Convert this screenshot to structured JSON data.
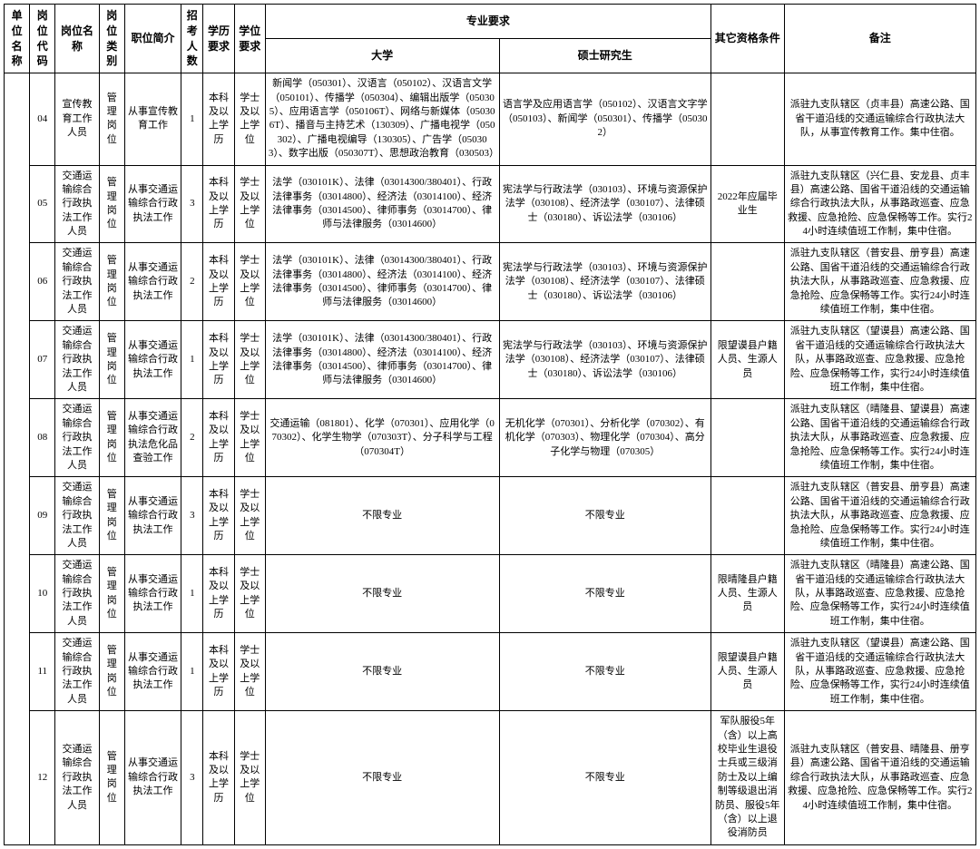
{
  "header": {
    "unit": "单位名称",
    "code": "岗位代码",
    "pname": "岗位名称",
    "ptype": "岗位类别",
    "desc": "职位简介",
    "count": "招考人数",
    "edu": "学历要求",
    "deg": "学位要求",
    "majGroup": "专业要求",
    "major1": "大学",
    "major2": "硕士研究生",
    "other": "其它资格条件",
    "remark": "备注"
  },
  "rows": [
    {
      "code": "04",
      "pname": "宣传教育工作人员",
      "ptype": "管理岗位",
      "desc": "从事宣传教育工作",
      "count": "1",
      "edu": "本科及以上学历",
      "deg": "学士及以上学位",
      "major1": "新闻学（050301）、汉语言（050102）、汉语言文学（050101）、传播学（050304）、编辑出版学（050305）、应用语言学（050106T）、网络与新媒体（050306T）、播音与主持艺术（130309）、广播电视学（050302）、广播电视编导（130305）、广告学（050303）、数字出版（050307T）、思想政治教育（030503）",
      "major2": "语言学及应用语言学（050102）、汉语言文字学（050103）、新闻学（050301）、传播学（050302）",
      "other": "",
      "remark": "派驻九支队辖区（贞丰县）高速公路、国省干道沿线的交通运输综合行政执法大队，从事宣传教育工作。集中住宿。"
    },
    {
      "code": "05",
      "pname": "交通运输综合行政执法工作人员",
      "ptype": "管理岗位",
      "desc": "从事交通运输综合行政执法工作",
      "count": "3",
      "edu": "本科及以上学历",
      "deg": "学士及以上学位",
      "major1": "法学（030101K）、法律（03014300/380401）、行政法律事务（03014800）、经济法（03014100）、经济法律事务（03014500）、律师事务（03014700）、律师与法律服务（03014600）",
      "major2": "宪法学与行政法学（030103）、环境与资源保护法学（030108）、经济法学（030107）、法律硕士（030180）、诉讼法学（030106）",
      "other": "2022年应届毕业生",
      "remark": "派驻九支队辖区（兴仁县、安龙县、贞丰县）高速公路、国省干道沿线的交通运输综合行政执法大队，从事路政巡查、应急救援、应急抢险、应急保畅等工作。实行24小时连续值班工作制，集中住宿。"
    },
    {
      "code": "06",
      "pname": "交通运输综合行政执法工作人员",
      "ptype": "管理岗位",
      "desc": "从事交通运输综合行政执法工作",
      "count": "2",
      "edu": "本科及以上学历",
      "deg": "学士及以上学位",
      "major1": "法学（030101K）、法律（03014300/380401）、行政法律事务（03014800）、经济法（03014100）、经济法律事务（03014500）、律师事务（03014700）、律师与法律服务（03014600）",
      "major2": "宪法学与行政法学（030103）、环境与资源保护法学（030108）、经济法学（030107）、法律硕士（030180）、诉讼法学（030106）",
      "other": "",
      "remark": "派驻九支队辖区（普安县、册亨县）高速公路、国省干道沿线的交通运输综合行政执法大队，从事路政巡查、应急救援、应急抢险、应急保畅等工作。实行24小时连续值班工作制，集中住宿。"
    },
    {
      "code": "07",
      "pname": "交通运输综合行政执法工作人员",
      "ptype": "管理岗位",
      "desc": "从事交通运输综合行政执法工作",
      "count": "1",
      "edu": "本科及以上学历",
      "deg": "学士及以上学位",
      "major1": "法学（030101K）、法律（03014300/380401）、行政法律事务（03014800）、经济法（03014100）、经济法律事务（03014500）、律师事务（03014700）、律师与法律服务（03014600）",
      "major2": "宪法学与行政法学（030103）、环境与资源保护法学（030108）、经济法学（030107）、法律硕士（030180）、诉讼法学（030106）",
      "other": "限望谟县户籍人员、生源人员",
      "remark": "派驻九支队辖区（望谟县）高速公路、国省干道沿线的交通运输综合行政执法大队，从事路政巡查、应急救援、应急抢险、应急保畅等工作，实行24小时连续值班工作制，集中住宿。"
    },
    {
      "code": "08",
      "pname": "交通运输综合行政执法工作人员",
      "ptype": "管理岗位",
      "desc": "从事交通运输综合行政执法危化品查验工作",
      "count": "2",
      "edu": "本科及以上学历",
      "deg": "学士及以上学位",
      "major1": "交通运输（081801）、化学（070301）、应用化学（070302）、化学生物学（070303T）、分子科学与工程（070304T）",
      "major2": "无机化学（070301）、分析化学（070302）、有机化学（070303）、物理化学（070304）、高分子化学与物理（070305）",
      "other": "",
      "remark": "派驻九支队辖区（晴隆县、望谟县）高速公路、国省干道沿线的交通运输综合行政执法大队，从事路政巡查、应急救援、应急抢险、应急保畅等工作。实行24小时连续值班工作制，集中住宿。"
    },
    {
      "code": "09",
      "pname": "交通运输综合行政执法工作人员",
      "ptype": "管理岗位",
      "desc": "从事交通运输综合行政执法工作",
      "count": "3",
      "edu": "本科及以上学历",
      "deg": "学士及以上学位",
      "major1": "不限专业",
      "major2": "不限专业",
      "other": "",
      "remark": "派驻九支队辖区（普安县、册亨县）高速公路、国省干道沿线的交通运输综合行政执法大队，从事路政巡查、应急救援、应急抢险、应急保畅等工作。实行24小时连续值班工作制，集中住宿。"
    },
    {
      "code": "10",
      "pname": "交通运输综合行政执法工作人员",
      "ptype": "管理岗位",
      "desc": "从事交通运输综合行政执法工作",
      "count": "1",
      "edu": "本科及以上学历",
      "deg": "学士及以上学位",
      "major1": "不限专业",
      "major2": "不限专业",
      "other": "限晴隆县户籍人员、生源人员",
      "remark": "派驻九支队辖区（晴隆县）高速公路、国省干道沿线的交通运输综合行政执法大队，从事路政巡查、应急救援、应急抢险、应急保畅等工作，实行24小时连续值班工作制，集中住宿。"
    },
    {
      "code": "11",
      "pname": "交通运输综合行政执法工作人员",
      "ptype": "管理岗位",
      "desc": "从事交通运输综合行政执法工作",
      "count": "1",
      "edu": "本科及以上学历",
      "deg": "学士及以上学位",
      "major1": "不限专业",
      "major2": "不限专业",
      "other": "限望谟县户籍人员、生源人员",
      "remark": "派驻九支队辖区（望谟县）高速公路、国省干道沿线的交通运输综合行政执法大队，从事路政巡查、应急救援、应急抢险、应急保畅等工作，实行24小时连续值班工作制，集中住宿。"
    },
    {
      "code": "12",
      "pname": "交通运输综合行政执法工作人员",
      "ptype": "管理岗位",
      "desc": "从事交通运输综合行政执法工作",
      "count": "3",
      "edu": "本科及以上学历",
      "deg": "学士及以上学位",
      "major1": "不限专业",
      "major2": "不限专业",
      "other": "军队服役5年（含）以上高校毕业生退役士兵或三级消防士及以上编制等级退出消防员、服役5年（含）以上退役消防员",
      "remark": "派驻九支队辖区（普安县、晴隆县、册亨县）高速公路、国省干道沿线的交通运输综合行政执法大队，从事路政巡查、应急救援、应急抢险、应急保畅等工作。实行24小时连续值班工作制，集中住宿。"
    }
  ]
}
